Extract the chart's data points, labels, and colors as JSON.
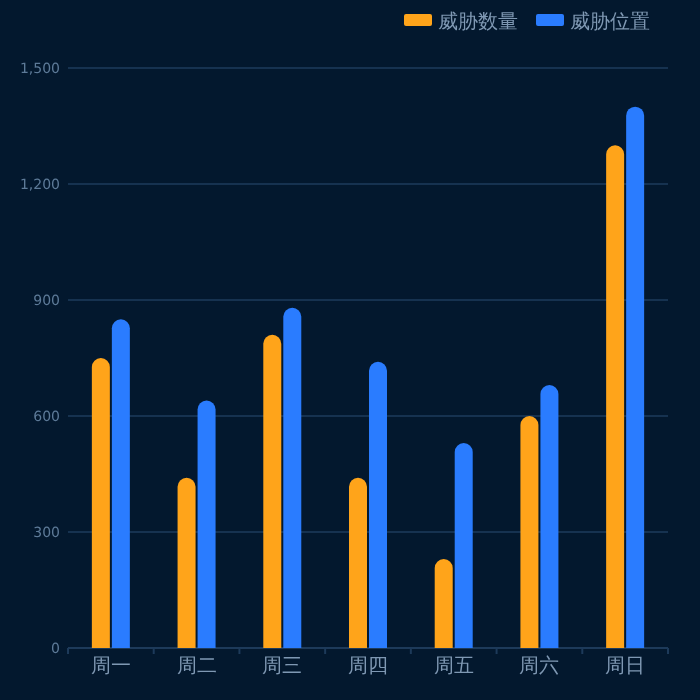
{
  "chart_data": {
    "type": "bar",
    "categories": [
      "周一",
      "周二",
      "周三",
      "周四",
      "周五",
      "周六",
      "周日"
    ],
    "series": [
      {
        "name": "威胁数量",
        "color": "#ffa41a",
        "values": [
          750,
          440,
          810,
          440,
          230,
          600,
          1300
        ]
      },
      {
        "name": "威胁位置",
        "color": "#2a7cff",
        "values": [
          850,
          640,
          880,
          740,
          530,
          680,
          1400
        ]
      }
    ],
    "ylim": [
      0,
      1500
    ],
    "yticks": [
      0,
      {
        "value": 300,
        "label": "300"
      },
      {
        "value": 600,
        "label": "600"
      },
      {
        "value": 900,
        "label": "900"
      },
      {
        "value": 1200,
        "label": "1,200"
      },
      {
        "value": 1500,
        "label": "1,500"
      }
    ],
    "grid": "y",
    "legend": "top right"
  }
}
